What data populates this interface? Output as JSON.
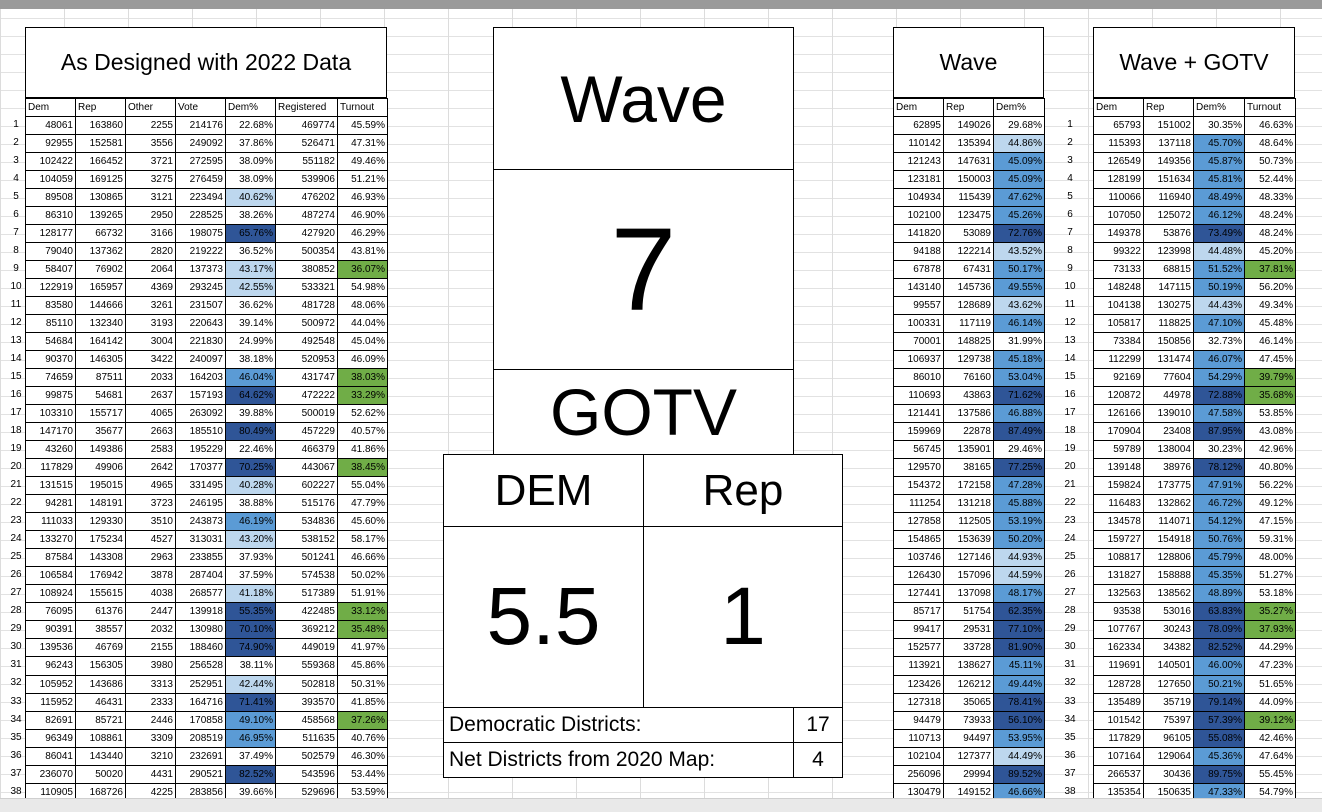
{
  "left": {
    "title": "As Designed with 2022 Data",
    "headers": [
      "Dem",
      "Rep",
      "Other",
      "Vote",
      "Dem%",
      "Registered",
      "Turnout"
    ],
    "rows": [
      [
        "48061",
        "163860",
        "2255",
        "214176",
        "22.68%",
        "469774",
        "45.59%"
      ],
      [
        "92955",
        "152581",
        "3556",
        "249092",
        "37.86%",
        "526471",
        "47.31%"
      ],
      [
        "102422",
        "166452",
        "3721",
        "272595",
        "38.09%",
        "551182",
        "49.46%"
      ],
      [
        "104059",
        "169125",
        "3275",
        "276459",
        "38.09%",
        "539906",
        "51.21%"
      ],
      [
        "89508",
        "130865",
        "3121",
        "223494",
        "40.62%",
        "476202",
        "46.93%"
      ],
      [
        "86310",
        "139265",
        "2950",
        "228525",
        "38.26%",
        "487274",
        "46.90%"
      ],
      [
        "128177",
        "66732",
        "3166",
        "198075",
        "65.76%",
        "427920",
        "46.29%"
      ],
      [
        "79040",
        "137362",
        "2820",
        "219222",
        "36.52%",
        "500354",
        "43.81%"
      ],
      [
        "58407",
        "76902",
        "2064",
        "137373",
        "43.17%",
        "380852",
        "36.07%"
      ],
      [
        "122919",
        "165957",
        "4369",
        "293245",
        "42.55%",
        "533321",
        "54.98%"
      ],
      [
        "83580",
        "144666",
        "3261",
        "231507",
        "36.62%",
        "481728",
        "48.06%"
      ],
      [
        "85110",
        "132340",
        "3193",
        "220643",
        "39.14%",
        "500972",
        "44.04%"
      ],
      [
        "54684",
        "164142",
        "3004",
        "221830",
        "24.99%",
        "492548",
        "45.04%"
      ],
      [
        "90370",
        "146305",
        "3422",
        "240097",
        "38.18%",
        "520953",
        "46.09%"
      ],
      [
        "74659",
        "87511",
        "2033",
        "164203",
        "46.04%",
        "431747",
        "38.03%"
      ],
      [
        "99875",
        "54681",
        "2637",
        "157193",
        "64.62%",
        "472222",
        "33.29%"
      ],
      [
        "103310",
        "155717",
        "4065",
        "263092",
        "39.88%",
        "500019",
        "52.62%"
      ],
      [
        "147170",
        "35677",
        "2663",
        "185510",
        "80.49%",
        "457229",
        "40.57%"
      ],
      [
        "43260",
        "149386",
        "2583",
        "195229",
        "22.46%",
        "466379",
        "41.86%"
      ],
      [
        "117829",
        "49906",
        "2642",
        "170377",
        "70.25%",
        "443067",
        "38.45%"
      ],
      [
        "131515",
        "195015",
        "4965",
        "331495",
        "40.28%",
        "602227",
        "55.04%"
      ],
      [
        "94281",
        "148191",
        "3723",
        "246195",
        "38.88%",
        "515176",
        "47.79%"
      ],
      [
        "111033",
        "129330",
        "3510",
        "243873",
        "46.19%",
        "534836",
        "45.60%"
      ],
      [
        "133270",
        "175234",
        "4527",
        "313031",
        "43.20%",
        "538152",
        "58.17%"
      ],
      [
        "87584",
        "143308",
        "2963",
        "233855",
        "37.93%",
        "501241",
        "46.66%"
      ],
      [
        "106584",
        "176942",
        "3878",
        "287404",
        "37.59%",
        "574538",
        "50.02%"
      ],
      [
        "108924",
        "155615",
        "4038",
        "268577",
        "41.18%",
        "517389",
        "51.91%"
      ],
      [
        "76095",
        "61376",
        "2447",
        "139918",
        "55.35%",
        "422485",
        "33.12%"
      ],
      [
        "90391",
        "38557",
        "2032",
        "130980",
        "70.10%",
        "369212",
        "35.48%"
      ],
      [
        "139536",
        "46769",
        "2155",
        "188460",
        "74.90%",
        "449019",
        "41.97%"
      ],
      [
        "96243",
        "156305",
        "3980",
        "256528",
        "38.11%",
        "559368",
        "45.86%"
      ],
      [
        "105952",
        "143686",
        "3313",
        "252951",
        "42.44%",
        "502818",
        "50.31%"
      ],
      [
        "115952",
        "46431",
        "2333",
        "164716",
        "71.41%",
        "393570",
        "41.85%"
      ],
      [
        "82691",
        "85721",
        "2446",
        "170858",
        "49.10%",
        "458568",
        "37.26%"
      ],
      [
        "96349",
        "108861",
        "3309",
        "208519",
        "46.95%",
        "511635",
        "40.76%"
      ],
      [
        "86041",
        "143440",
        "3210",
        "232691",
        "37.49%",
        "502579",
        "46.30%"
      ],
      [
        "236070",
        "50020",
        "4431",
        "290521",
        "82.52%",
        "543596",
        "53.44%"
      ],
      [
        "110905",
        "168726",
        "4225",
        "283856",
        "39.66%",
        "529696",
        "53.59%"
      ]
    ]
  },
  "center": {
    "wave_label": "Wave",
    "wave_value": "7",
    "gotv_label": "GOTV",
    "dem_header": "DEM",
    "rep_header": "Rep",
    "dem_value": "5.5",
    "rep_value": "1",
    "dem_districts_label": "Democratic Districts:",
    "dem_districts_value": "17",
    "net_label": "Net Districts from 2020 Map:",
    "net_value": "4"
  },
  "wave": {
    "title": "Wave",
    "headers": [
      "Dem",
      "Rep",
      "Dem%"
    ],
    "rows": [
      [
        "62895",
        "149026",
        "29.68%"
      ],
      [
        "110142",
        "135394",
        "44.86%"
      ],
      [
        "121243",
        "147631",
        "45.09%"
      ],
      [
        "123181",
        "150003",
        "45.09%"
      ],
      [
        "104934",
        "115439",
        "47.62%"
      ],
      [
        "102100",
        "123475",
        "45.26%"
      ],
      [
        "141820",
        "53089",
        "72.76%"
      ],
      [
        "94188",
        "122214",
        "43.52%"
      ],
      [
        "67878",
        "67431",
        "50.17%"
      ],
      [
        "143140",
        "145736",
        "49.55%"
      ],
      [
        "99557",
        "128689",
        "43.62%"
      ],
      [
        "100331",
        "117119",
        "46.14%"
      ],
      [
        "70001",
        "148825",
        "31.99%"
      ],
      [
        "106937",
        "129738",
        "45.18%"
      ],
      [
        "86010",
        "76160",
        "53.04%"
      ],
      [
        "110693",
        "43863",
        "71.62%"
      ],
      [
        "121441",
        "137586",
        "46.88%"
      ],
      [
        "159969",
        "22878",
        "87.49%"
      ],
      [
        "56745",
        "135901",
        "29.46%"
      ],
      [
        "129570",
        "38165",
        "77.25%"
      ],
      [
        "154372",
        "172158",
        "47.28%"
      ],
      [
        "111254",
        "131218",
        "45.88%"
      ],
      [
        "127858",
        "112505",
        "53.19%"
      ],
      [
        "154865",
        "153639",
        "50.20%"
      ],
      [
        "103746",
        "127146",
        "44.93%"
      ],
      [
        "126430",
        "157096",
        "44.59%"
      ],
      [
        "127441",
        "137098",
        "48.17%"
      ],
      [
        "85717",
        "51754",
        "62.35%"
      ],
      [
        "99417",
        "29531",
        "77.10%"
      ],
      [
        "152577",
        "33728",
        "81.90%"
      ],
      [
        "113921",
        "138627",
        "45.11%"
      ],
      [
        "123426",
        "126212",
        "49.44%"
      ],
      [
        "127318",
        "35065",
        "78.41%"
      ],
      [
        "94479",
        "73933",
        "56.10%"
      ],
      [
        "110713",
        "94497",
        "53.95%"
      ],
      [
        "102104",
        "127377",
        "44.49%"
      ],
      [
        "256096",
        "29994",
        "89.52%"
      ],
      [
        "130479",
        "149152",
        "46.66%"
      ]
    ]
  },
  "gotv": {
    "title": "Wave + GOTV",
    "headers": [
      "Dem",
      "Rep",
      "Dem%",
      "Turnout"
    ],
    "rows": [
      [
        "65793",
        "151002",
        "30.35%",
        "46.63%"
      ],
      [
        "115393",
        "137118",
        "45.70%",
        "48.64%"
      ],
      [
        "126549",
        "149356",
        "45.87%",
        "50.73%"
      ],
      [
        "128199",
        "151634",
        "45.81%",
        "52.44%"
      ],
      [
        "110066",
        "116940",
        "48.49%",
        "48.33%"
      ],
      [
        "107050",
        "125072",
        "46.12%",
        "48.24%"
      ],
      [
        "149378",
        "53876",
        "73.49%",
        "48.24%"
      ],
      [
        "99322",
        "123998",
        "44.48%",
        "45.20%"
      ],
      [
        "73133",
        "68815",
        "51.52%",
        "37.81%"
      ],
      [
        "148248",
        "147115",
        "50.19%",
        "56.20%"
      ],
      [
        "104138",
        "130275",
        "44.43%",
        "49.34%"
      ],
      [
        "105817",
        "118825",
        "47.10%",
        "45.48%"
      ],
      [
        "73384",
        "150856",
        "32.73%",
        "46.14%"
      ],
      [
        "112299",
        "131474",
        "46.07%",
        "47.45%"
      ],
      [
        "92169",
        "77604",
        "54.29%",
        "39.79%"
      ],
      [
        "120872",
        "44978",
        "72.88%",
        "35.68%"
      ],
      [
        "126166",
        "139010",
        "47.58%",
        "53.85%"
      ],
      [
        "170904",
        "23408",
        "87.95%",
        "43.08%"
      ],
      [
        "59789",
        "138004",
        "30.23%",
        "42.96%"
      ],
      [
        "139148",
        "38976",
        "78.12%",
        "40.80%"
      ],
      [
        "159824",
        "173775",
        "47.91%",
        "56.22%"
      ],
      [
        "116483",
        "132862",
        "46.72%",
        "49.12%"
      ],
      [
        "134578",
        "114071",
        "54.12%",
        "47.15%"
      ],
      [
        "159727",
        "154918",
        "50.76%",
        "59.31%"
      ],
      [
        "108817",
        "128806",
        "45.79%",
        "48.00%"
      ],
      [
        "131827",
        "158888",
        "45.35%",
        "51.27%"
      ],
      [
        "132563",
        "138562",
        "48.89%",
        "53.18%"
      ],
      [
        "93538",
        "53016",
        "63.83%",
        "35.27%"
      ],
      [
        "107767",
        "30243",
        "78.09%",
        "37.93%"
      ],
      [
        "162334",
        "34382",
        "82.52%",
        "44.29%"
      ],
      [
        "119691",
        "140501",
        "46.00%",
        "47.23%"
      ],
      [
        "128728",
        "127650",
        "50.21%",
        "51.65%"
      ],
      [
        "135489",
        "35719",
        "79.14%",
        "44.09%"
      ],
      [
        "101542",
        "75397",
        "57.39%",
        "39.12%"
      ],
      [
        "117829",
        "96105",
        "55.08%",
        "42.46%"
      ],
      [
        "107164",
        "129064",
        "45.36%",
        "47.64%"
      ],
      [
        "266537",
        "30436",
        "89.75%",
        "55.45%"
      ],
      [
        "135354",
        "150635",
        "47.33%",
        "54.79%"
      ]
    ]
  },
  "row_numbers": [
    "1",
    "2",
    "3",
    "4",
    "5",
    "6",
    "7",
    "8",
    "9",
    "10",
    "11",
    "12",
    "13",
    "14",
    "15",
    "16",
    "17",
    "18",
    "19",
    "20",
    "21",
    "22",
    "23",
    "24",
    "25",
    "26",
    "27",
    "28",
    "29",
    "30",
    "31",
    "32",
    "33",
    "34",
    "35",
    "36",
    "37",
    "38"
  ],
  "colors": {
    "shade_light": "#bdd7ee",
    "shade_mid": "#5b9bd5",
    "shade_dark": "#2f5597",
    "turnout_green": "#70ad47"
  }
}
